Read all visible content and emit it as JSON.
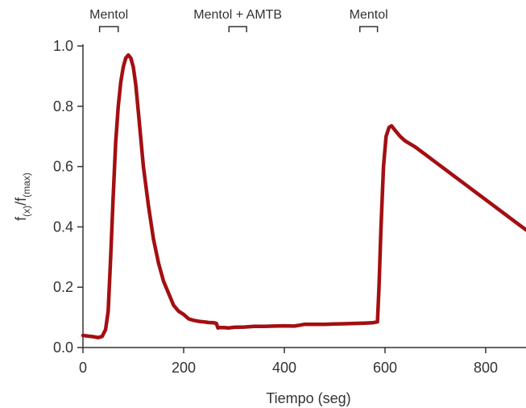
{
  "chart_data": {
    "type": "line",
    "xlabel": "Tiempo (seg)",
    "ylabel": {
      "base1": "f",
      "sub1": "(x)",
      "mid": "/f",
      "sub2": "(max)"
    },
    "xlim": [
      0,
      880
    ],
    "ylim": [
      0,
      1.0
    ],
    "x_ticks": [
      0,
      200,
      400,
      600,
      800
    ],
    "x_tick_labels": [
      "0",
      "200",
      "400",
      "600",
      "800"
    ],
    "y_ticks": [
      0,
      0.2,
      0.4,
      0.6,
      0.8,
      1.0
    ],
    "y_tick_labels": [
      "0.0",
      "0.2",
      "0.4",
      "0.6",
      "0.8",
      "1.0"
    ],
    "grid": false,
    "legend": "none",
    "line_color": "#a30f12",
    "annotations": [
      {
        "label": "Mentol",
        "x_start": 33,
        "x_end": 70
      },
      {
        "label": "Mentol + AMTB",
        "x_start": 290,
        "x_end": 325
      },
      {
        "label": "Mentol",
        "x_start": 550,
        "x_end": 585
      }
    ],
    "series": [
      {
        "x": [
          0,
          10,
          20,
          30,
          38,
          45,
          50,
          55,
          60,
          65,
          70,
          75,
          80,
          85,
          90,
          95,
          100,
          105,
          110,
          115,
          120,
          130,
          140,
          150,
          160,
          170,
          180,
          190,
          200,
          210,
          220,
          230,
          240,
          250,
          260,
          265,
          268,
          270,
          280,
          290,
          300,
          320,
          340,
          360,
          380,
          400,
          420,
          430,
          440,
          460,
          480,
          500,
          520,
          540,
          560,
          575,
          585,
          588,
          592,
          597,
          602,
          608,
          613,
          620,
          630,
          640,
          660,
          680,
          700,
          720,
          740,
          760,
          780,
          800,
          820,
          840,
          860,
          880
        ],
        "y": [
          0.04,
          0.038,
          0.036,
          0.033,
          0.037,
          0.06,
          0.12,
          0.3,
          0.5,
          0.68,
          0.8,
          0.88,
          0.93,
          0.96,
          0.97,
          0.96,
          0.93,
          0.87,
          0.78,
          0.69,
          0.6,
          0.47,
          0.36,
          0.28,
          0.22,
          0.18,
          0.14,
          0.12,
          0.11,
          0.095,
          0.09,
          0.087,
          0.085,
          0.083,
          0.082,
          0.08,
          0.065,
          0.066,
          0.066,
          0.065,
          0.067,
          0.068,
          0.07,
          0.07,
          0.071,
          0.072,
          0.071,
          0.074,
          0.077,
          0.077,
          0.077,
          0.078,
          0.079,
          0.08,
          0.081,
          0.082,
          0.085,
          0.2,
          0.4,
          0.6,
          0.7,
          0.73,
          0.735,
          0.72,
          0.7,
          0.685,
          0.665,
          0.64,
          0.615,
          0.59,
          0.565,
          0.54,
          0.515,
          0.49,
          0.465,
          0.44,
          0.415,
          0.39
        ]
      }
    ]
  }
}
